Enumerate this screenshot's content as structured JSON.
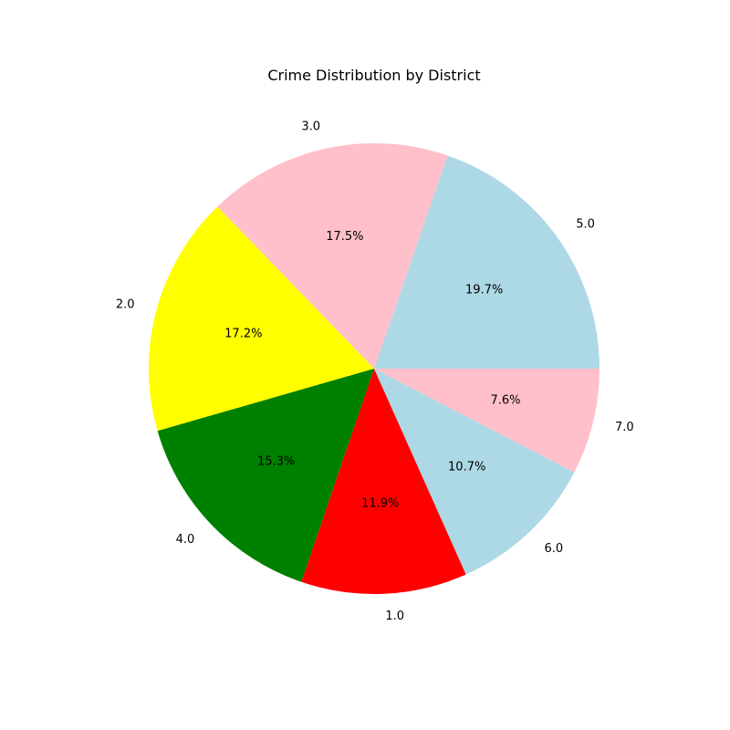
{
  "chart_data": {
    "type": "pie",
    "title": "Crime Distribution by District",
    "start_angle_deg": 0,
    "direction": "counterclockwise",
    "slices": [
      {
        "label": "5.0",
        "value": 19.7,
        "pct_label": "19.7%",
        "color": "#add8e6"
      },
      {
        "label": "3.0",
        "value": 17.5,
        "pct_label": "17.5%",
        "color": "#ffc0cb"
      },
      {
        "label": "2.0",
        "value": 17.2,
        "pct_label": "17.2%",
        "color": "#ffff00"
      },
      {
        "label": "4.0",
        "value": 15.3,
        "pct_label": "15.3%",
        "color": "#008000"
      },
      {
        "label": "1.0",
        "value": 11.9,
        "pct_label": "11.9%",
        "color": "#ff0000"
      },
      {
        "label": "6.0",
        "value": 10.7,
        "pct_label": "10.7%",
        "color": "#add8e6"
      },
      {
        "label": "7.0",
        "value": 7.6,
        "pct_label": "7.6%",
        "color": "#ffc0cb"
      }
    ]
  }
}
